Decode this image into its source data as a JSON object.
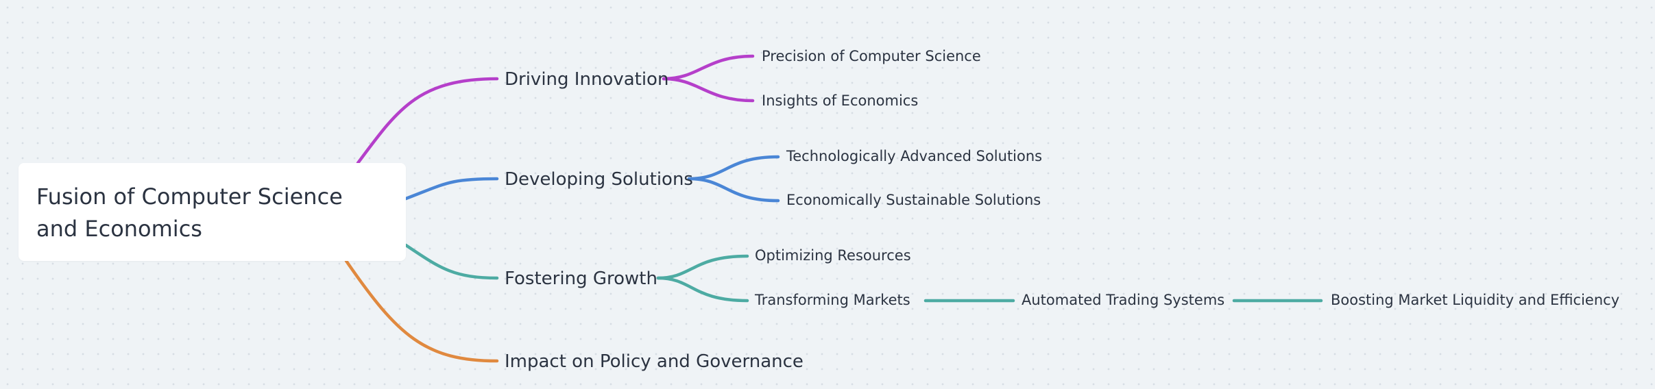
{
  "mindmap": {
    "root": {
      "title": "Fusion of Computer Science and Economics"
    },
    "branches": [
      {
        "label": "Driving Innovation",
        "color": "#b53fca",
        "children": [
          {
            "label": "Precision of Computer Science"
          },
          {
            "label": "Insights of Economics"
          }
        ]
      },
      {
        "label": "Developing Solutions",
        "color": "#4a86d6",
        "children": [
          {
            "label": "Technologically Advanced Solutions"
          },
          {
            "label": "Economically Sustainable Solutions"
          }
        ]
      },
      {
        "label": "Fostering Growth",
        "color": "#4daba3",
        "children": [
          {
            "label": "Optimizing Resources"
          },
          {
            "label": "Transforming Markets",
            "children": [
              {
                "label": "Automated Trading Systems",
                "children": [
                  {
                    "label": "Boosting Market Liquidity and Efficiency"
                  }
                ]
              }
            ]
          }
        ]
      },
      {
        "label": "Impact on Policy and Governance",
        "color": "#e0893f",
        "children": []
      }
    ]
  }
}
